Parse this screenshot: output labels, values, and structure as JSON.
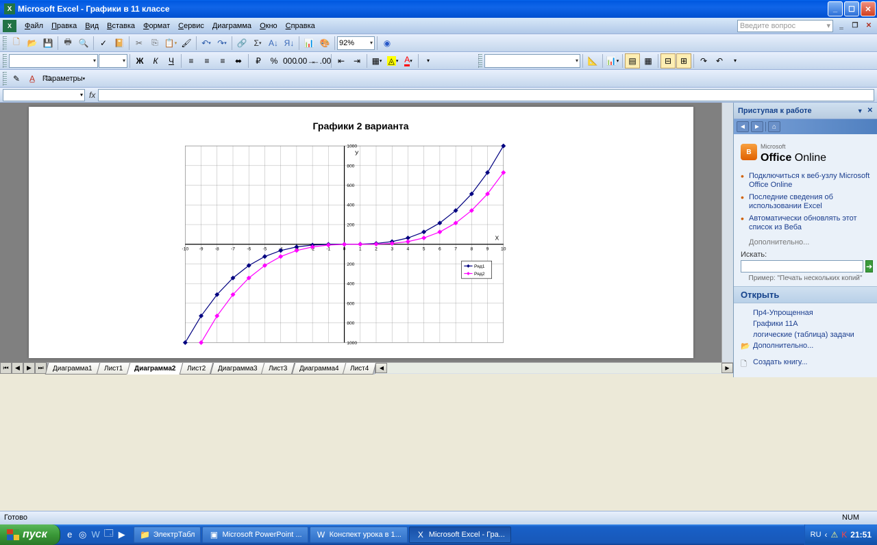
{
  "titlebar": {
    "app": "Microsoft Excel",
    "doc": "Графики в 11 классе"
  },
  "menu": {
    "items": [
      "Файл",
      "Правка",
      "Вид",
      "Вставка",
      "Формат",
      "Сервис",
      "Диаграмма",
      "Окно",
      "Справка"
    ],
    "question_placeholder": "Введите вопрос"
  },
  "toolbar1": {
    "zoom": "92%"
  },
  "toolbar2": {
    "font": "",
    "fontsize": ""
  },
  "toolbar3": {
    "params_label": "Параметры"
  },
  "chart": {
    "type": "line",
    "title": "Графики 2 варианта",
    "x_axis_label": "X",
    "y_axis_label": "У",
    "x_categories": [
      -10,
      -9,
      -8,
      -7,
      -6,
      -5,
      -4,
      -3,
      -2,
      -1,
      0,
      1,
      2,
      3,
      4,
      5,
      6,
      7,
      8,
      9,
      10
    ],
    "series": [
      {
        "name": "Ряд1",
        "color": "#000080",
        "marker": "diamond",
        "values": [
          -1000,
          -729,
          -512,
          -343,
          -216,
          -125,
          -64,
          -27,
          -8,
          -1,
          0,
          1,
          8,
          27,
          64,
          125,
          216,
          343,
          512,
          729,
          1000
        ]
      },
      {
        "name": "Ряд2",
        "color": "#ff00ff",
        "marker": "diamond",
        "values": [
          null,
          -1000,
          -729,
          -512,
          -343,
          -216,
          -125,
          -64,
          -27,
          -8,
          -1,
          0,
          1,
          8,
          27,
          64,
          125,
          216,
          343,
          512,
          729
        ]
      }
    ],
    "ylim": [
      -1000,
      1000
    ],
    "ytick_step": 200,
    "grid_color": "#808080",
    "axis_color": "#000000",
    "background": "#ffffff",
    "line_width": 2,
    "marker_size": 5,
    "legend": {
      "pos": "right",
      "bg": "#ffffff",
      "border": "#000000"
    }
  },
  "sheettabs": {
    "tabs": [
      "Диаграмма1",
      "Лист1",
      "Диаграмма2",
      "Лист2",
      "Диаграмма3",
      "Лист3",
      "Диаграмма4",
      "Лист4"
    ],
    "active_index": 2
  },
  "taskpane": {
    "title": "Приступая к работе",
    "office_online": "Office Online",
    "office_prefix": "Microsoft",
    "links": [
      "Подключиться к веб-узлу Microsoft Office Online",
      "Последние сведения об использовании Excel",
      "Автоматически обновлять этот список из Веба"
    ],
    "more": "Дополнительно...",
    "search_label": "Искать:",
    "search_placeholder": "",
    "example_label": "Пример:",
    "example_text": "\"Печать нескольких копий\"",
    "open_title": "Открыть",
    "recent": [
      "Пр4-Упрощенная",
      "Графики 11А",
      "логические (таблица) задачи"
    ],
    "open_more": "Дополнительно...",
    "create": "Создать книгу..."
  },
  "statusbar": {
    "ready": "Готово",
    "num": "NUM"
  },
  "wintaskbar": {
    "start": "пуск",
    "tasks": [
      {
        "label": "ЭлектрТабл",
        "icon": "📁",
        "active": false
      },
      {
        "label": "Microsoft PowerPoint ...",
        "icon": "▣",
        "active": false
      },
      {
        "label": "Конспект урока в 1...",
        "icon": "W",
        "active": false
      },
      {
        "label": "Microsoft Excel - Гра...",
        "icon": "X",
        "active": true
      }
    ],
    "lang": "RU",
    "clock": "21:51"
  }
}
